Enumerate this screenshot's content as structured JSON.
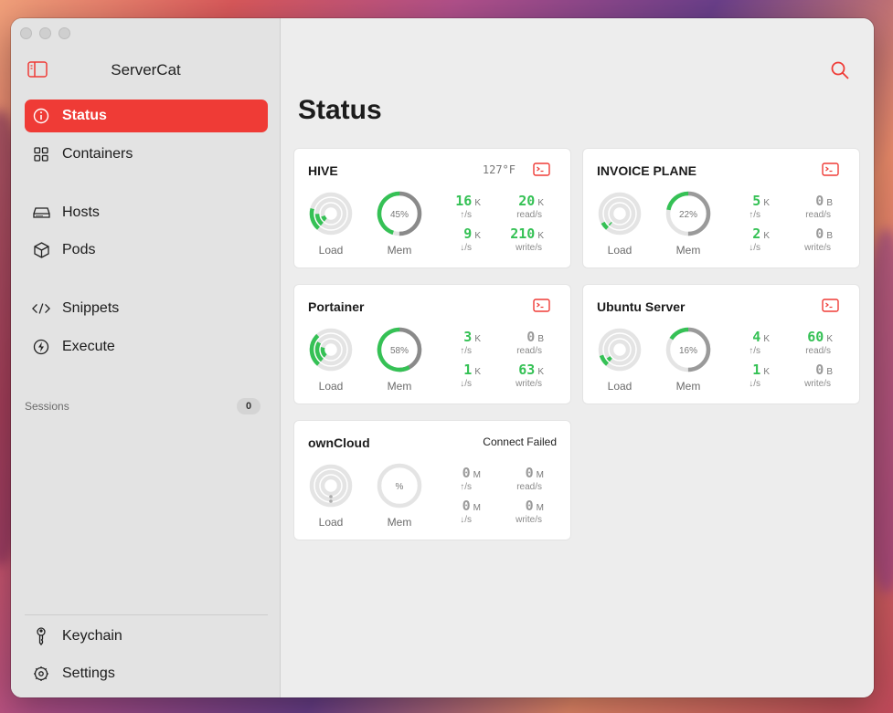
{
  "sidebar": {
    "app_title": "ServerCat",
    "items": [
      {
        "label": "Status",
        "icon": "info-circle-icon"
      },
      {
        "label": "Containers",
        "icon": "grid-icon"
      },
      {
        "label": "Hosts",
        "icon": "server-drive-icon"
      },
      {
        "label": "Pods",
        "icon": "cube-icon"
      },
      {
        "label": "Snippets",
        "icon": "code-icon"
      },
      {
        "label": "Execute",
        "icon": "bolt-circle-icon"
      }
    ],
    "sessions_label": "Sessions",
    "sessions_count": "0",
    "bottom_items": [
      {
        "label": "Keychain",
        "icon": "key-icon"
      },
      {
        "label": "Settings",
        "icon": "gear-icon"
      }
    ]
  },
  "main": {
    "title": "Status",
    "accent_color": "#ef3b36",
    "good_color": "#35c155"
  },
  "servers": [
    {
      "name": "HIVE",
      "temp": "127°F",
      "status": "",
      "load": 0.6,
      "mem_pct": 0.45,
      "mem_text": "45%",
      "up": "16",
      "up_unit": "K",
      "up_lbl": "↑/s",
      "down": "9",
      "down_unit": "K",
      "down_lbl": "↓/s",
      "read": "20",
      "read_unit": "K",
      "read_lbl": "read/s",
      "write": "210",
      "write_unit": "K",
      "write_lbl": "write/s",
      "load_label": "Load",
      "mem_label": "Mem"
    },
    {
      "name": "INVOICE PLANE",
      "temp": "",
      "status": "",
      "load": 0.2,
      "mem_pct": 0.22,
      "mem_text": "22%",
      "up": "5",
      "up_unit": "K",
      "up_lbl": "↑/s",
      "down": "2",
      "down_unit": "K",
      "down_lbl": "↓/s",
      "read": "0",
      "read_unit": "B",
      "read_lbl": "read/s",
      "write": "0",
      "write_unit": "B",
      "write_lbl": "write/s",
      "load_label": "Load",
      "mem_label": "Mem"
    },
    {
      "name": "Portainer",
      "temp": "",
      "status": "",
      "load": 0.9,
      "mem_pct": 0.58,
      "mem_text": "58%",
      "up": "3",
      "up_unit": "K",
      "up_lbl": "↑/s",
      "down": "1",
      "down_unit": "K",
      "down_lbl": "↓/s",
      "read": "0",
      "read_unit": "B",
      "read_lbl": "read/s",
      "write": "63",
      "write_unit": "K",
      "write_lbl": "write/s",
      "load_label": "Load",
      "mem_label": "Mem"
    },
    {
      "name": "Ubuntu Server",
      "temp": "",
      "status": "",
      "load": 0.3,
      "mem_pct": 0.16,
      "mem_text": "16%",
      "up": "4",
      "up_unit": "K",
      "up_lbl": "↑/s",
      "down": "1",
      "down_unit": "K",
      "down_lbl": "↓/s",
      "read": "60",
      "read_unit": "K",
      "read_lbl": "read/s",
      "write": "0",
      "write_unit": "B",
      "write_lbl": "write/s",
      "load_label": "Load",
      "mem_label": "Mem"
    },
    {
      "name": "ownCloud",
      "temp": "",
      "status": "Connect Failed",
      "load": 0.0,
      "mem_pct": 0.0,
      "mem_text": "%",
      "up": "0",
      "up_unit": "M",
      "up_lbl": "↑/s",
      "down": "0",
      "down_unit": "M",
      "down_lbl": "↓/s",
      "read": "0",
      "read_unit": "M",
      "read_lbl": "read/s",
      "write": "0",
      "write_unit": "M",
      "write_lbl": "write/s",
      "load_label": "Load",
      "mem_label": "Mem"
    }
  ]
}
